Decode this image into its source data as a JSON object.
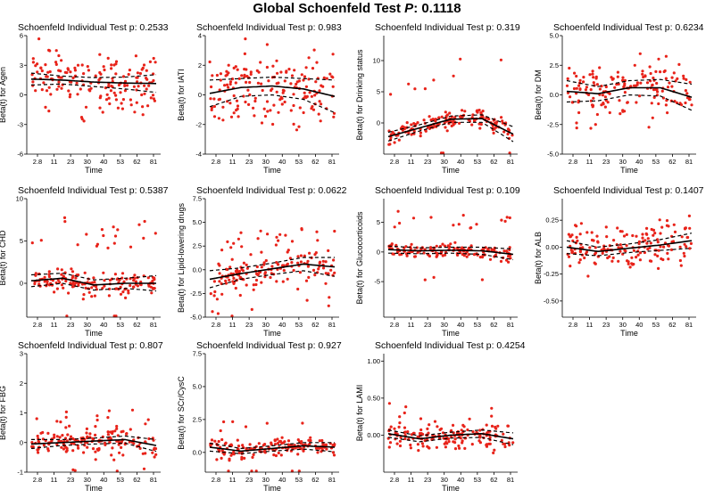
{
  "title_prefix": "Global Schoenfeld Test ",
  "title_p_symbol": "P",
  "title_p_value": ": 0.1118",
  "colors": {
    "points": "#e8231a",
    "fit": "#000000",
    "axis": "#000000"
  },
  "chart_data": [
    {
      "type": "scatter",
      "title": "Schoenfeld Individual Test p: 0.2533",
      "ylabel": "Beta(t) for Agen",
      "xlabel": "Time",
      "x_ticks": [
        "2.8",
        "11",
        "23",
        "30",
        "40",
        "53",
        "62",
        "81"
      ],
      "ylim": [
        -6,
        6
      ],
      "y_ticks": [
        -6,
        -3,
        0,
        3,
        6
      ],
      "spread": 2.3,
      "outlier_prob": 0.05,
      "outlier_mag": 1.5,
      "fit": [
        1.6,
        1.5,
        1.3,
        1.2,
        1.15
      ],
      "band": [
        0.6,
        0.4,
        0.45,
        0.6,
        0.9
      ]
    },
    {
      "type": "scatter",
      "title": "Schoenfeld Individual Test p: 0.983",
      "ylabel": "Beta(t) for IATI",
      "xlabel": "Time",
      "x_ticks": [
        "2.8",
        "11",
        "23",
        "30",
        "40",
        "53",
        "62",
        "81"
      ],
      "ylim": [
        -4,
        4
      ],
      "y_ticks": [
        -4,
        -2,
        0,
        2,
        4
      ],
      "spread": 1.8,
      "outlier_prob": 0.05,
      "outlier_mag": 1.3,
      "fit": [
        0.1,
        0.5,
        0.6,
        0.4,
        -0.1
      ],
      "band": [
        0.9,
        0.6,
        0.6,
        0.7,
        1.1
      ]
    },
    {
      "type": "scatter",
      "title": "Schoenfeld Individual Test p: 0.319",
      "ylabel": "Beta(t) for Drinking status",
      "xlabel": "Time",
      "x_ticks": [
        "2.8",
        "11",
        "23",
        "30",
        "40",
        "53",
        "62",
        "81"
      ],
      "ylim": [
        -5,
        14
      ],
      "y_ticks": [
        0,
        5,
        10
      ],
      "spread": 1.2,
      "outlier_prob": 0.08,
      "outlier_mag": 10,
      "fit": [
        -2.2,
        -0.8,
        0.6,
        0.7,
        -1.8
      ],
      "band": [
        0.7,
        0.5,
        0.5,
        0.6,
        1.2
      ]
    },
    {
      "type": "scatter",
      "title": "Schoenfeld Individual Test p: 0.6234",
      "ylabel": "Beta(t) for DM",
      "xlabel": "Time",
      "x_ticks": [
        "2.8",
        "11",
        "23",
        "30",
        "40",
        "53",
        "62",
        "81"
      ],
      "ylim": [
        -5,
        5
      ],
      "y_ticks": [
        -5.0,
        -2.5,
        0.0,
        2.5,
        5.0
      ],
      "spread": 2.0,
      "outlier_prob": 0.05,
      "outlier_mag": 1.3,
      "fit": [
        0.3,
        0.1,
        0.6,
        0.6,
        -0.2
      ],
      "band": [
        0.9,
        0.6,
        0.6,
        0.7,
        1.1
      ]
    },
    {
      "type": "scatter",
      "title": "Schoenfeld Individual Test p: 0.5387",
      "ylabel": "Beta(t) for CHD",
      "xlabel": "Time",
      "x_ticks": [
        "2.8",
        "11",
        "23",
        "30",
        "40",
        "53",
        "62",
        "81"
      ],
      "ylim": [
        -4,
        10
      ],
      "y_ticks": [
        0,
        5,
        10
      ],
      "spread": 1.1,
      "outlier_prob": 0.14,
      "outlier_mag": 7,
      "fit": [
        0.3,
        0.6,
        -0.2,
        0,
        0
      ],
      "band": [
        0.7,
        0.6,
        0.6,
        0.6,
        0.9
      ]
    },
    {
      "type": "scatter",
      "title": "Schoenfeld Individual Test p: 0.0622",
      "ylabel": "Beta(t) for Lipid-lowering drugs",
      "xlabel": "Time",
      "x_ticks": [
        "2.8",
        "11",
        "23",
        "30",
        "40",
        "53",
        "62",
        "81"
      ],
      "ylim": [
        -5,
        7.5
      ],
      "y_ticks": [
        -5.0,
        -2.5,
        0.0,
        2.5,
        5.0,
        7.5
      ],
      "spread": 1.5,
      "outlier_prob": 0.18,
      "outlier_mag": 4,
      "fit": [
        -1.0,
        -0.4,
        0.1,
        0.6,
        0.3
      ],
      "band": [
        0.9,
        0.6,
        0.6,
        0.7,
        1.0
      ]
    },
    {
      "type": "scatter",
      "title": "Schoenfeld Individual Test p: 0.109",
      "ylabel": "Beta(t) for Glucocorticoids",
      "xlabel": "Time",
      "x_ticks": [
        "2.8",
        "11",
        "23",
        "30",
        "40",
        "53",
        "62",
        "81"
      ],
      "ylim": [
        -11,
        9
      ],
      "y_ticks": [
        -5,
        0,
        5
      ],
      "spread": 1.0,
      "outlier_prob": 0.14,
      "outlier_mag": 6,
      "fit": [
        0.4,
        0.2,
        0.3,
        0.2,
        -0.4
      ],
      "band": [
        0.6,
        0.5,
        0.5,
        0.6,
        0.9
      ]
    },
    {
      "type": "scatter",
      "title": "Schoenfeld Individual Test p: 0.1407",
      "ylabel": "Beta(t) for ALB",
      "xlabel": "Time",
      "x_ticks": [
        "2.8",
        "11",
        "23",
        "30",
        "40",
        "53",
        "62",
        "81"
      ],
      "ylim": [
        -0.65,
        0.45
      ],
      "y_ticks": [
        -0.5,
        -0.25,
        0.0,
        0.25
      ],
      "spread": 0.17,
      "outlier_prob": 0.05,
      "outlier_mag": 0.25,
      "fit": [
        0.0,
        -0.04,
        -0.01,
        0.02,
        0.06
      ],
      "band": [
        0.06,
        0.04,
        0.04,
        0.05,
        0.07
      ]
    },
    {
      "type": "scatter",
      "title": "Schoenfeld Individual Test p: 0.807",
      "ylabel": "Beta(t) for FBG",
      "xlabel": "Time",
      "x_ticks": [
        "2.8",
        "11",
        "23",
        "30",
        "40",
        "53",
        "62",
        "81"
      ],
      "ylim": [
        -1,
        3
      ],
      "y_ticks": [
        -1,
        0,
        1,
        2,
        3
      ],
      "spread": 0.35,
      "outlier_prob": 0.07,
      "outlier_mag": 1.0,
      "fit": [
        -0.05,
        0.0,
        0.05,
        0.1,
        -0.1
      ],
      "band": [
        0.15,
        0.1,
        0.1,
        0.12,
        0.2
      ]
    },
    {
      "type": "scatter",
      "title": "Schoenfeld Individual Test p: 0.927",
      "ylabel": "Beta(t) for SCr/CysC",
      "xlabel": "Time",
      "x_ticks": [
        "2.8",
        "11",
        "23",
        "30",
        "40",
        "53",
        "62",
        "81"
      ],
      "ylim": [
        -1.5,
        7.5
      ],
      "y_ticks": [
        0.0,
        2.5,
        5.0,
        7.5
      ],
      "spread": 0.5,
      "outlier_prob": 0.08,
      "outlier_mag": 2.2,
      "fit": [
        0.4,
        0.1,
        0.3,
        0.5,
        0.4
      ],
      "band": [
        0.3,
        0.2,
        0.2,
        0.25,
        0.35
      ]
    },
    {
      "type": "scatter",
      "title": "Schoenfeld Individual Test p: 0.4254",
      "ylabel": "Beta(t) for LAMI",
      "xlabel": "Time",
      "x_ticks": [
        "2.8",
        "11",
        "23",
        "30",
        "40",
        "53",
        "62",
        "81"
      ],
      "ylim": [
        -0.5,
        1.1
      ],
      "y_ticks": [
        0.0,
        0.5,
        1.0
      ],
      "spread": 0.16,
      "outlier_prob": 0.05,
      "outlier_mag": 0.4,
      "fit": [
        0.02,
        -0.05,
        0.0,
        0.02,
        -0.05
      ],
      "band": [
        0.05,
        0.04,
        0.04,
        0.05,
        0.08
      ]
    }
  ]
}
